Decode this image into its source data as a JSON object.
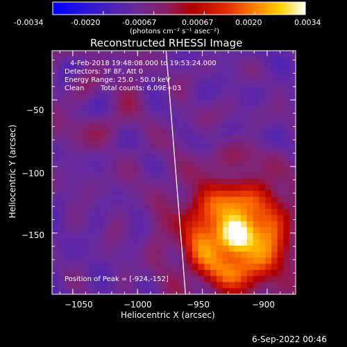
{
  "colorbar": {
    "tick_labels": [
      "-0.0034",
      "-0.0020",
      "-0.00067",
      "0.00067",
      "0.0020",
      "0.0034"
    ],
    "units_label": "(photons cm⁻² s⁻¹ asec⁻²)"
  },
  "chart_data": {
    "type": "heatmap",
    "title": "Reconstructed RHESSI Image",
    "xlabel": "Heliocentric X (arcsec)",
    "ylabel": "Heliocentric Y (arcsec)",
    "xlim": [
      -1066,
      -878
    ],
    "ylim": [
      -196,
      -13
    ],
    "x_ticks": [
      -1050,
      -1000,
      -950,
      -900
    ],
    "y_ticks": [
      -150,
      -100,
      -50
    ],
    "x_tick_labels": [
      "−1050",
      "−1000",
      "−950",
      "−900"
    ],
    "y_tick_labels": [
      "−150",
      "−100",
      "−50"
    ],
    "value_range": [
      -0.0034,
      0.0034
    ],
    "peak": [
      -924,
      -152
    ],
    "limb_line": [
      [
        -978,
        -13
      ],
      [
        -963,
        -196
      ]
    ]
  },
  "info": {
    "time": "4-Feb-2018 19:48:08.000 to 19:53:24.000",
    "detectors": "Detectors: 3F 8F, Att 0",
    "energy": "Energy Range: 25.0 - 50.0 keV",
    "method": "Clean",
    "counts": "Total counts: 6.09E+03",
    "peak_text": "Position of Peak = [-924,-152]"
  },
  "footer": {
    "date": "6-Sep-2022 00:46"
  }
}
